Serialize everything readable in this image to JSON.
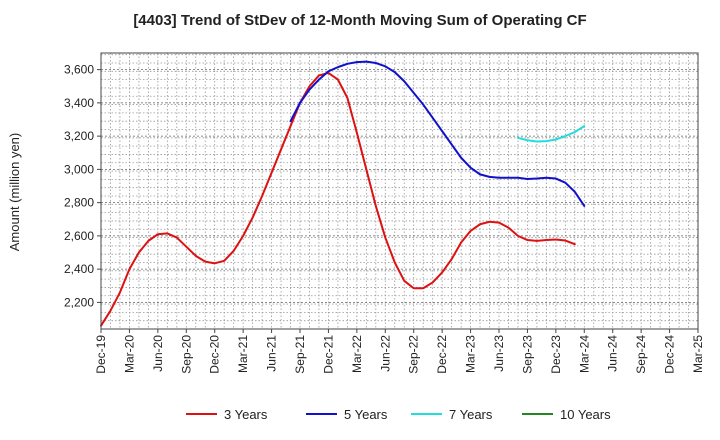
{
  "chart_data": {
    "type": "line",
    "title": "[4403]  Trend of StDev of 12-Month Moving Sum of Operating CF",
    "xlabel": "",
    "ylabel": "Amount (million yen)",
    "ylim": [
      2040,
      3700
    ],
    "yticks": [
      2200,
      2400,
      2600,
      2800,
      3000,
      3200,
      3400,
      3600
    ],
    "ytick_labels": [
      "2,200",
      "2,400",
      "2,600",
      "2,800",
      "3,000",
      "3,200",
      "3,400",
      "3,600"
    ],
    "x_start_month": "2019-12",
    "x_range_months": [
      0,
      63
    ],
    "xtick_labels": [
      "Dec-19",
      "Mar-20",
      "Jun-20",
      "Sep-20",
      "Dec-20",
      "Mar-21",
      "Jun-21",
      "Sep-21",
      "Dec-21",
      "Mar-22",
      "Jun-22",
      "Sep-22",
      "Dec-22",
      "Mar-23",
      "Jun-23",
      "Sep-23",
      "Dec-23",
      "Mar-24",
      "Jun-24",
      "Sep-24",
      "Dec-24",
      "Mar-25"
    ],
    "grid": true,
    "legend_position": "bottom",
    "series": [
      {
        "name": "3 Years",
        "color": "#dd1111",
        "start_index": 0,
        "values": [
          2060,
          2150,
          2260,
          2400,
          2500,
          2570,
          2610,
          2615,
          2590,
          2535,
          2480,
          2445,
          2435,
          2450,
          2510,
          2600,
          2710,
          2840,
          2980,
          3120,
          3260,
          3400,
          3500,
          3565,
          3580,
          3540,
          3430,
          3220,
          3000,
          2780,
          2590,
          2440,
          2330,
          2285,
          2285,
          2320,
          2380,
          2460,
          2560,
          2630,
          2670,
          2685,
          2680,
          2650,
          2600,
          2575,
          2570,
          2575,
          2578,
          2572,
          2550
        ]
      },
      {
        "name": "5 Years",
        "color": "#1111cc",
        "start_index": 20,
        "values": [
          3290,
          3400,
          3480,
          3540,
          3590,
          3615,
          3635,
          3645,
          3648,
          3640,
          3620,
          3585,
          3530,
          3460,
          3390,
          3310,
          3230,
          3150,
          3070,
          3010,
          2970,
          2955,
          2950,
          2950,
          2950,
          2942,
          2945,
          2950,
          2945,
          2920,
          2865,
          2780
        ]
      },
      {
        "name": "7 Years",
        "color": "#22dddd",
        "start_index": 44,
        "values": [
          3190,
          3175,
          3168,
          3170,
          3180,
          3200,
          3225,
          3260
        ]
      },
      {
        "name": "10 Years",
        "color": "#228822",
        "start_index": 0,
        "values": []
      }
    ]
  }
}
